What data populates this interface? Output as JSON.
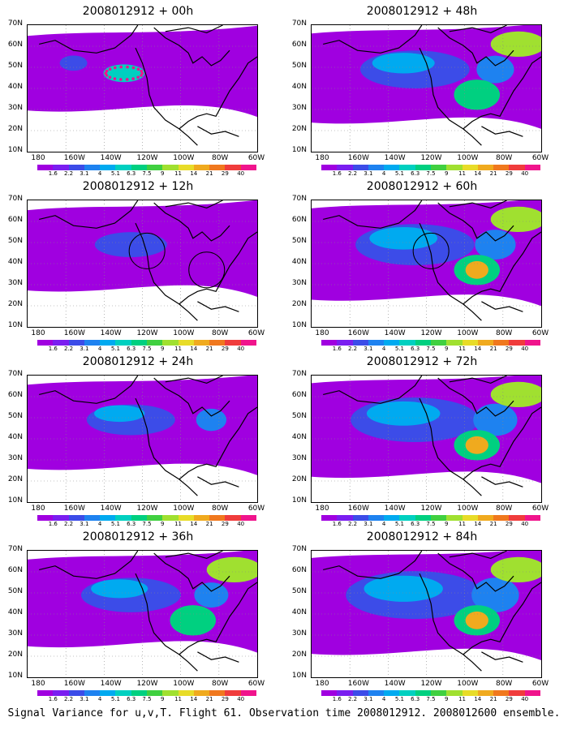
{
  "caption": "Signal Variance for u,v,T. Flight 61. Observation time 2008012912. 2008012600 ensemble.",
  "y_tick_labels": [
    "70N",
    "60N",
    "50N",
    "40N",
    "30N",
    "20N",
    "10N"
  ],
  "x_tick_labels": [
    "180",
    "160W",
    "140W",
    "120W",
    "100W",
    "80W",
    "60W"
  ],
  "colorbar": {
    "labels": [
      "1.6",
      "2.2",
      "3.1",
      "4",
      "5.1",
      "6.3",
      "7.5",
      "9",
      "11",
      "14",
      "21",
      "29",
      "40"
    ],
    "colors": [
      "#a000e0",
      "#7a1ef0",
      "#3c4ce8",
      "#1e82f0",
      "#00aaf0",
      "#00d0c0",
      "#00d080",
      "#40d040",
      "#a0e030",
      "#e8dc28",
      "#f0aa1e",
      "#f0781e",
      "#f03c3c",
      "#f0148c"
    ]
  },
  "panels": [
    {
      "title": "2008012912 + 00h",
      "lead_hours": 0,
      "level": 0.3,
      "flight_track": true
    },
    {
      "title": "2008012912 + 12h",
      "lead_hours": 12,
      "level": 0.45,
      "circles": 2
    },
    {
      "title": "2008012912 + 24h",
      "lead_hours": 24,
      "level": 0.55
    },
    {
      "title": "2008012912 + 36h",
      "lead_hours": 36,
      "level": 0.62
    },
    {
      "title": "2008012912 + 48h",
      "lead_hours": 48,
      "level": 0.68
    },
    {
      "title": "2008012912 + 60h",
      "lead_hours": 60,
      "level": 0.74,
      "circles": 1
    },
    {
      "title": "2008012912 + 72h",
      "lead_hours": 72,
      "level": 0.8
    },
    {
      "title": "2008012912 + 84h",
      "lead_hours": 84,
      "level": 0.86
    }
  ]
}
